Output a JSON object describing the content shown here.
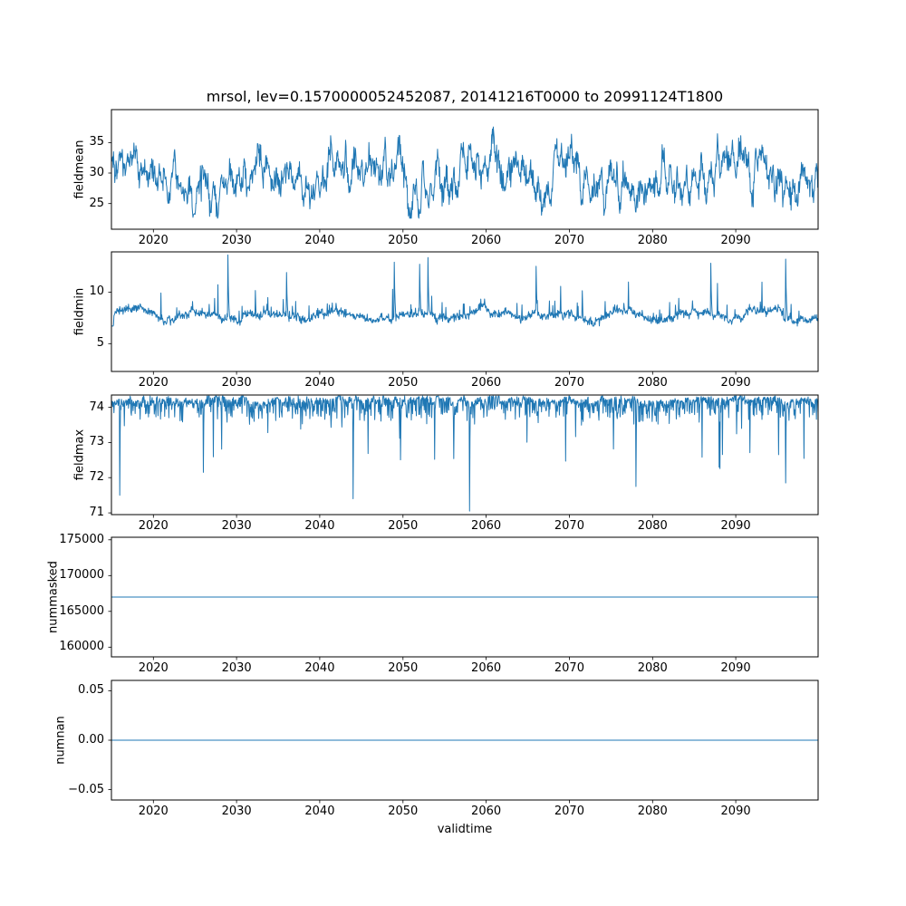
{
  "figure": {
    "title": "mrsol, lev=0.1570000052452087, 20141216T0000 to 20991124T1800",
    "xlabel": "validtime",
    "line_color": "#1f77b4",
    "background": "#ffffff"
  },
  "chart_data": [
    {
      "type": "line",
      "ylabel": "fieldmean",
      "x_range": [
        2014.96,
        2099.9
      ],
      "xtick_values": [
        2020,
        2030,
        2040,
        2050,
        2060,
        2070,
        2080,
        2090
      ],
      "xtick_labels": [
        "2020",
        "2030",
        "2040",
        "2050",
        "2060",
        "2070",
        "2080",
        "2090"
      ],
      "ylim": [
        20.8,
        40.4
      ],
      "ytick_values": [
        25,
        30,
        35
      ],
      "ytick_labels": [
        "25",
        "30",
        "35"
      ],
      "value_summary": {
        "baseline": 29.6,
        "observed_min": 22.6,
        "observed_max": 38.6
      },
      "synthesis": {
        "kind": "noisy",
        "seed": 7,
        "points": 1700,
        "base": 29.6,
        "slow_amp": 1.0,
        "slow_period": 23,
        "fast_amp": 1.2,
        "fast_period": 0.93,
        "ar_decay": 0.92,
        "ar_sd": 0.85,
        "jitter_sd": 0.75,
        "clamp": [
          22.6,
          38.6
        ]
      }
    },
    {
      "type": "line",
      "ylabel": "fieldmin",
      "x_range": [
        2014.96,
        2099.9
      ],
      "xtick_values": [
        2020,
        2030,
        2040,
        2050,
        2060,
        2070,
        2080,
        2090
      ],
      "xtick_labels": [
        "2020",
        "2030",
        "2040",
        "2050",
        "2060",
        "2070",
        "2080",
        "2090"
      ],
      "ylim": [
        2.3,
        13.9
      ],
      "ytick_values": [
        5,
        10
      ],
      "ytick_labels": [
        "5",
        "10"
      ],
      "value_summary": {
        "baseline": 7.7,
        "start_value": 2.4,
        "spike_max": 13.6
      },
      "synthesis": {
        "kind": "spiky-up",
        "seed": 13,
        "points": 1700,
        "base": 7.7,
        "slow_amp": 0.3,
        "slow_period": 8.5,
        "fast_amp": 0,
        "fast_period": 1,
        "ar_decay": 0.95,
        "ar_sd": 0.08,
        "jitter_sd": 0.18,
        "small_spike_prob": 0.05,
        "small_spike_max": 1.5,
        "big_spike_prob": 0.006,
        "big_spike_min": 2.2,
        "big_spike_max": 3.2,
        "clamp": [
          6.7,
          13.8
        ],
        "start_ramp": {
          "points": 6,
          "from": 2.4
        },
        "big_spikes": [
          {
            "frac": 0.165,
            "value": 13.6
          },
          {
            "frac": 0.248,
            "value": 11.9
          },
          {
            "frac": 0.4,
            "value": 12.9
          },
          {
            "frac": 0.436,
            "value": 12.7
          },
          {
            "frac": 0.448,
            "value": 13.35
          },
          {
            "frac": 0.601,
            "value": 12.5
          },
          {
            "frac": 0.848,
            "value": 12.8
          },
          {
            "frac": 0.954,
            "value": 13.2
          }
        ]
      }
    },
    {
      "type": "line",
      "ylabel": "fieldmax",
      "x_range": [
        2014.96,
        2099.9
      ],
      "xtick_values": [
        2020,
        2030,
        2040,
        2050,
        2060,
        2070,
        2080,
        2090
      ],
      "xtick_labels": [
        "2020",
        "2030",
        "2040",
        "2050",
        "2060",
        "2070",
        "2080",
        "2090"
      ],
      "ylim": [
        70.95,
        74.35
      ],
      "ytick_values": [
        71,
        72,
        73,
        74
      ],
      "ytick_labels": [
        "71",
        "72",
        "73",
        "74"
      ],
      "value_summary": {
        "baseline": 74.27,
        "deepest_dip": 71.05
      },
      "synthesis": {
        "kind": "spiky-down",
        "seed": 21,
        "points": 1700,
        "base": 74.27,
        "slow_amp": 0,
        "slow_period": 1,
        "fast_amp": 0,
        "fast_period": 1,
        "ar_decay": 0.85,
        "ar_sd": 0.03,
        "jitter_sd": 0.12,
        "small_spike_prob": 0.3,
        "small_spike_max": 0.5,
        "big_spike_prob": 0.018,
        "big_spike_min": 0.5,
        "big_spike_max": 1.8,
        "clamp": [
          71.0,
          74.32
        ],
        "deep_spikes": [
          {
            "frac": 0.012,
            "value": 71.5
          },
          {
            "frac": 0.13,
            "value": 72.15
          },
          {
            "frac": 0.342,
            "value": 71.4
          },
          {
            "frac": 0.507,
            "value": 71.05
          },
          {
            "frac": 0.742,
            "value": 71.75
          },
          {
            "frac": 0.86,
            "value": 72.3
          },
          {
            "frac": 0.954,
            "value": 71.85
          }
        ]
      }
    },
    {
      "type": "line",
      "ylabel": "nummasked",
      "x_range": [
        2014.96,
        2099.9
      ],
      "xtick_values": [
        2020,
        2030,
        2040,
        2050,
        2060,
        2070,
        2080,
        2090
      ],
      "xtick_labels": [
        "2020",
        "2030",
        "2040",
        "2050",
        "2060",
        "2070",
        "2080",
        "2090"
      ],
      "ylim": [
        158650,
        175350
      ],
      "ytick_values": [
        160000,
        165000,
        170000,
        175000
      ],
      "ytick_labels": [
        "160000",
        "165000",
        "170000",
        "175000"
      ],
      "value_summary": {
        "constant_value": 167000
      },
      "synthesis": {
        "kind": "constant",
        "value": 167000
      }
    },
    {
      "type": "line",
      "ylabel": "numnan",
      "x_range": [
        2014.96,
        2099.9
      ],
      "xtick_values": [
        2020,
        2030,
        2040,
        2050,
        2060,
        2070,
        2080,
        2090
      ],
      "xtick_labels": [
        "2020",
        "2030",
        "2040",
        "2050",
        "2060",
        "2070",
        "2080",
        "2090"
      ],
      "ylim": [
        -0.0605,
        0.0605
      ],
      "ytick_values": [
        -0.05,
        0.0,
        0.05
      ],
      "ytick_labels": [
        "−0.05",
        "0.00",
        "0.05"
      ],
      "value_summary": {
        "constant_value": 0
      },
      "synthesis": {
        "kind": "constant",
        "value": 0
      }
    }
  ]
}
